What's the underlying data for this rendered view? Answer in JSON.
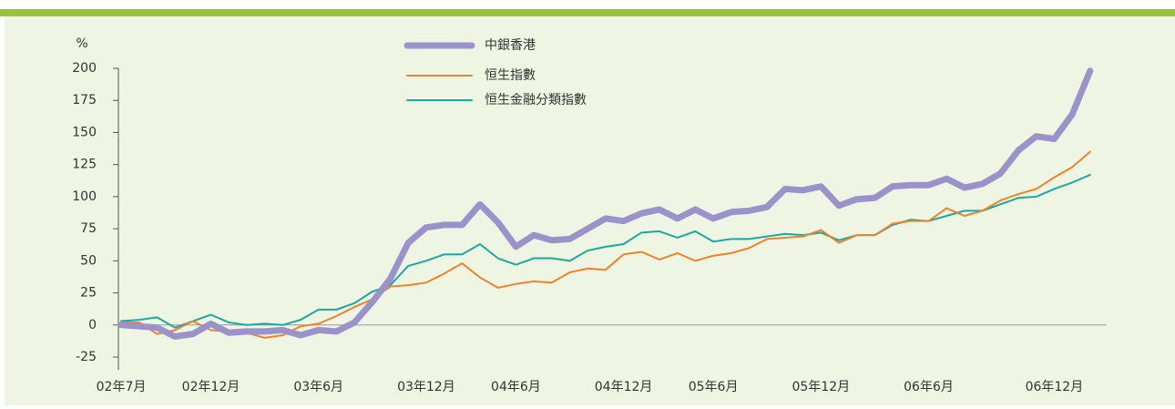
{
  "chart_data": {
    "type": "line",
    "y_unit": "%",
    "categories": [
      "02年7月",
      null,
      null,
      null,
      null,
      "02年12月",
      null,
      null,
      null,
      null,
      null,
      "03年6月",
      null,
      null,
      null,
      null,
      null,
      "03年12月",
      null,
      null,
      null,
      null,
      "04年6月",
      null,
      null,
      null,
      null,
      null,
      "04年12月",
      null,
      null,
      null,
      null,
      "05年6月",
      null,
      null,
      null,
      null,
      null,
      "05年12月",
      null,
      null,
      null,
      null,
      null,
      "06年6月",
      null,
      null,
      null,
      null,
      null,
      null,
      "06年12月",
      null,
      null
    ],
    "series": [
      {
        "name": "中銀香港",
        "color": "#9b91cb",
        "width": 7,
        "values": [
          0,
          -1,
          -2,
          -9,
          -7,
          1,
          -6,
          -5,
          -5,
          -4,
          -8,
          -4,
          -5,
          2,
          18,
          36,
          64,
          76,
          78,
          78,
          94,
          80,
          61,
          70,
          66,
          67,
          75,
          83,
          81,
          87,
          90,
          83,
          90,
          83,
          88,
          89,
          92,
          106,
          105,
          108,
          93,
          98,
          99,
          108,
          109,
          109,
          114,
          107,
          110,
          118,
          136,
          147,
          145,
          164,
          198
        ]
      },
      {
        "name": "恒生指數",
        "color": "#f0822a",
        "width": 2,
        "values": [
          2,
          2,
          -7,
          -4,
          3,
          -4,
          -5,
          -6,
          -10,
          -8,
          -1,
          1,
          7,
          14,
          20,
          30,
          31,
          33,
          40,
          48,
          37,
          29,
          32,
          34,
          33,
          41,
          44,
          43,
          55,
          57,
          51,
          56,
          50,
          54,
          56,
          60,
          67,
          68,
          69,
          74,
          64,
          70,
          70,
          79,
          81,
          81,
          91,
          85,
          89,
          97,
          102,
          106,
          115,
          123,
          135
        ]
      },
      {
        "name": "恒生金融分類指數",
        "color": "#1aa9a0",
        "width": 2,
        "values": [
          3,
          4,
          6,
          -2,
          3,
          8,
          2,
          0,
          1,
          0,
          4,
          12,
          12,
          17,
          26,
          31,
          46,
          50,
          55,
          55,
          63,
          52,
          47,
          52,
          52,
          50,
          58,
          61,
          63,
          72,
          73,
          68,
          73,
          65,
          67,
          67,
          69,
          71,
          70,
          72,
          66,
          70,
          70,
          78,
          82,
          81,
          85,
          89,
          89,
          94,
          99,
          100,
          106,
          111,
          117
        ]
      }
    ],
    "ylim": [
      -35,
      200
    ],
    "yticks": [
      -25,
      0,
      25,
      50,
      75,
      100,
      125,
      150,
      175,
      200
    ]
  }
}
